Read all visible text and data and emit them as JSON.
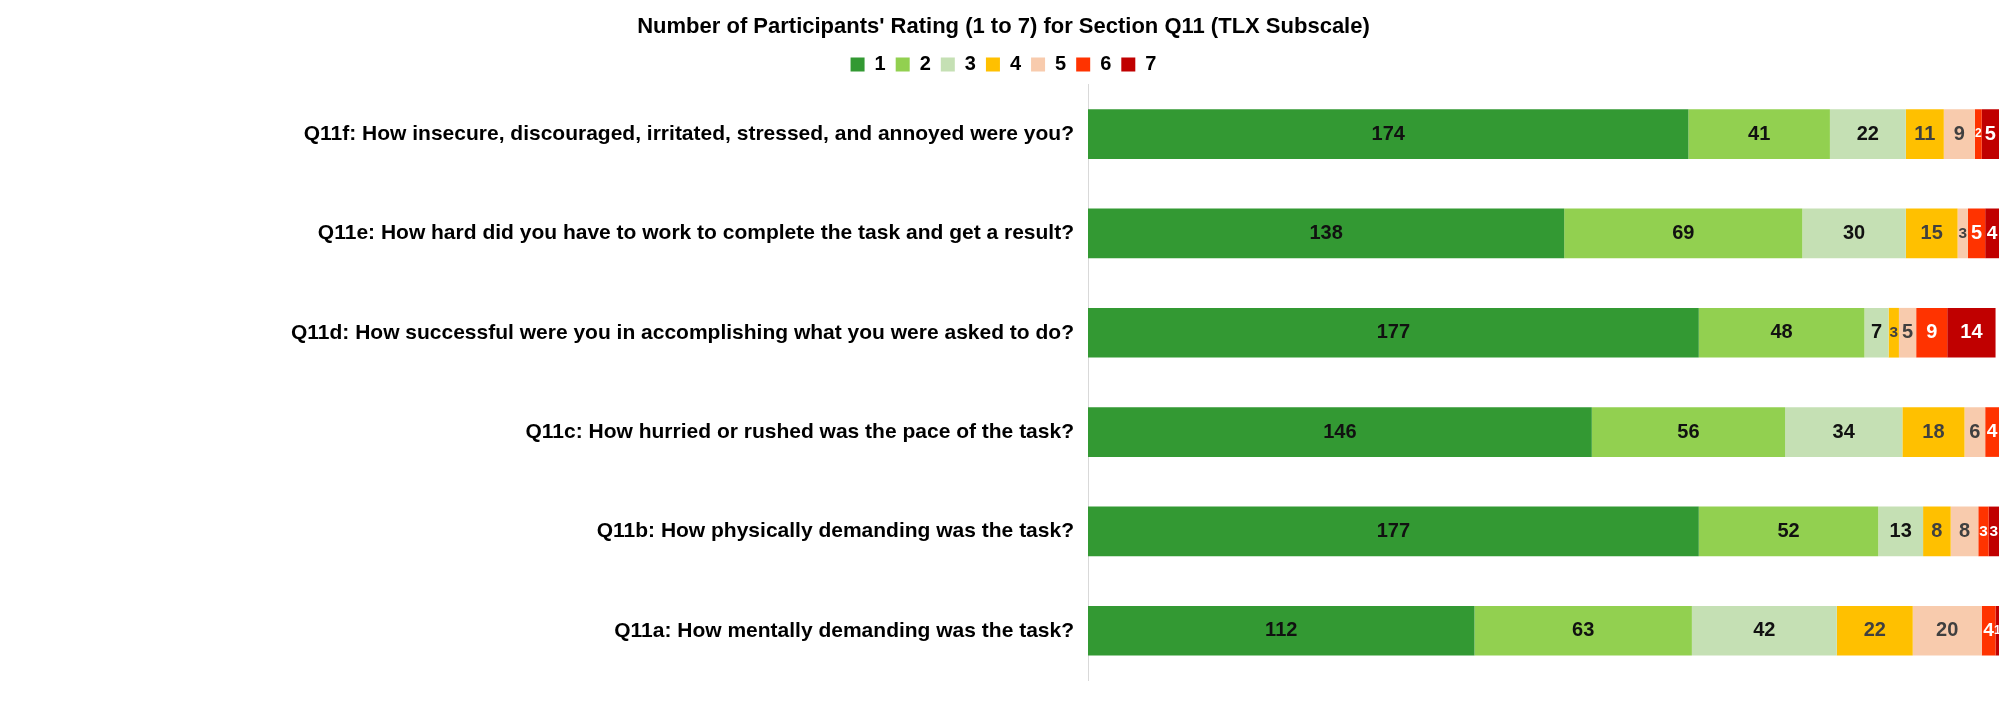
{
  "chart_data": {
    "type": "bar",
    "orientation": "horizontal",
    "stacked": true,
    "title": "Number of Participants' Rating (1 to 7) for Section Q11 (TLX Subscale)",
    "categories": [
      "Q11f: How insecure, discouraged, irritated, stressed, and annoyed were you?",
      "Q11e: How hard did you have to work to complete the task and get a result?",
      "Q11d: How successful were you in accomplishing what you were asked to do?",
      "Q11c: How hurried or rushed was the pace of the task?",
      "Q11b: How physically demanding was the task?",
      "Q11a: How mentally demanding was the task?"
    ],
    "series": [
      {
        "name": "1",
        "color": "#339933",
        "values": [
          174,
          138,
          177,
          146,
          177,
          112
        ],
        "value_labels": [
          "174",
          "138",
          "177",
          "146",
          "177",
          "112"
        ]
      },
      {
        "name": "2",
        "color": "#92d050",
        "values": [
          41,
          69,
          48,
          56,
          52,
          63
        ],
        "value_labels": [
          "41",
          "69",
          "48",
          "56",
          "52",
          "63"
        ]
      },
      {
        "name": "3",
        "color": "#c5e0b4",
        "values": [
          22,
          30,
          7,
          34,
          13,
          42
        ],
        "value_labels": [
          "22",
          "30",
          "7",
          "34",
          "13",
          "42"
        ]
      },
      {
        "name": "4",
        "color": "#ffc000",
        "values": [
          11,
          15,
          3,
          18,
          8,
          22
        ],
        "value_labels": [
          "11",
          "15",
          "3",
          "18",
          "8",
          "22"
        ]
      },
      {
        "name": "5",
        "color": "#f8cbad",
        "values": [
          9,
          3,
          5,
          6,
          8,
          20
        ],
        "value_labels": [
          "9",
          "3",
          "5",
          "6",
          "8",
          "20"
        ]
      },
      {
        "name": "6",
        "color": "#ff3300",
        "values": [
          2,
          5,
          9,
          4,
          3,
          4
        ],
        "value_labels": [
          "2",
          "5",
          "9",
          "4",
          "3",
          "4"
        ]
      },
      {
        "name": "7",
        "color": "#c00000",
        "values": [
          5,
          4,
          14,
          0,
          3,
          1
        ],
        "value_labels": [
          "5",
          "4",
          "14",
          null,
          "3",
          "1"
        ]
      }
    ],
    "xlim": [
      0,
      264
    ],
    "tick_labels": "y",
    "grid": false,
    "legend": "top"
  }
}
